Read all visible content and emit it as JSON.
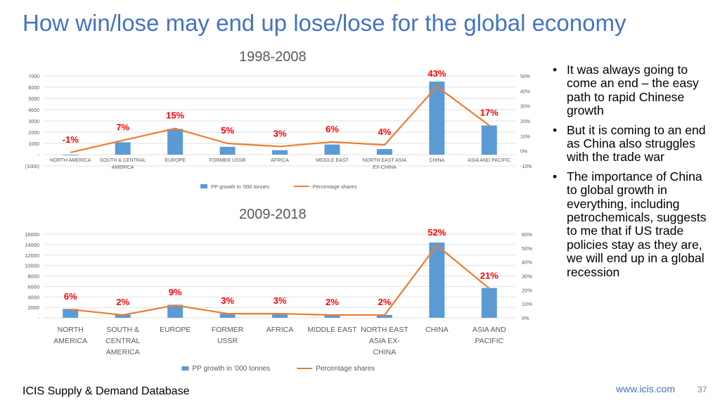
{
  "slide": {
    "title": "How win/lose may end up lose/lose for the global economy",
    "source": "ICIS Supply & Demand Database",
    "website": "www.icis.com",
    "page_number": "37"
  },
  "bullets": [
    {
      "text": "It was always going to come an end – the easy path to rapid Chinese growth"
    },
    {
      "text": "But it is coming to an end as China also struggles with the trade war"
    },
    {
      "text": "The importance of China to global growth in everything, including petrochemicals, suggests to me that if US trade policies stay as they are, we will end up in a global recession"
    }
  ],
  "colors": {
    "bar": "#5B9BD5",
    "line": "#ED7D31",
    "label": "#FF0000",
    "title": "#4472C4"
  },
  "chart_data": [
    {
      "type": "bar",
      "title": "1998-2008",
      "categories": [
        [
          "NORTH AMERICA"
        ],
        [
          "SOUTH & CENTRAL",
          "AMERICA"
        ],
        [
          "EUROPE"
        ],
        [
          "FORMER USSR"
        ],
        [
          "AFRICA"
        ],
        [
          "MIDDLE EAST"
        ],
        [
          "NORTH EAST ASIA",
          "EX-CHINA"
        ],
        [
          "CHINA"
        ],
        [
          "ASIA AND PACIFIC"
        ]
      ],
      "series": [
        {
          "name": "PP growth in '000 tonnes",
          "type": "bar",
          "axis": "left",
          "values": [
            -50,
            1100,
            2300,
            700,
            400,
            900,
            500,
            6500,
            2600
          ]
        },
        {
          "name": "Percentage shares",
          "type": "line",
          "axis": "right",
          "values": [
            -1,
            7,
            15,
            5,
            3,
            6,
            4,
            43,
            17
          ]
        }
      ],
      "data_labels": [
        "-1%",
        "7%",
        "15%",
        "5%",
        "3%",
        "6%",
        "4%",
        "43%",
        "17%"
      ],
      "y_left": {
        "min": -1000,
        "max": 7000,
        "ticks": [
          -1000,
          0,
          1000,
          2000,
          3000,
          4000,
          5000,
          6000,
          7000
        ],
        "tick_labels": [
          "(1000)",
          "-",
          "1000",
          "2000",
          "3000",
          "4000",
          "5000",
          "6000",
          "7000"
        ]
      },
      "y_right": {
        "min": -10,
        "max": 50,
        "ticks": [
          -10,
          0,
          10,
          20,
          30,
          40,
          50
        ],
        "tick_labels": [
          "-10%",
          "0%",
          "10%",
          "20%",
          "30%",
          "40%",
          "50%"
        ]
      },
      "grid": true,
      "legend": "bottom"
    },
    {
      "type": "bar",
      "title": "2009-2018",
      "categories": [
        [
          "NORTH",
          "AMERICA"
        ],
        [
          "SOUTH &",
          "CENTRAL",
          "AMERICA"
        ],
        [
          "EUROPE"
        ],
        [
          "FORMER",
          "USSR"
        ],
        [
          "AFRICA"
        ],
        [
          "MIDDLE EAST"
        ],
        [
          "NORTH EAST",
          "ASIA EX-",
          "CHINA"
        ],
        [
          "CHINA"
        ],
        [
          "ASIA AND",
          "PACIFIC"
        ]
      ],
      "series": [
        {
          "name": "PP growth in '000 tonnes",
          "type": "bar",
          "axis": "left",
          "values": [
            1700,
            600,
            2500,
            800,
            750,
            500,
            550,
            14400,
            5700
          ]
        },
        {
          "name": "Percentage shares",
          "type": "line",
          "axis": "right",
          "values": [
            6,
            2,
            9,
            3,
            3,
            2,
            2,
            52,
            21
          ]
        }
      ],
      "data_labels": [
        "6%",
        "2%",
        "9%",
        "3%",
        "3%",
        "2%",
        "2%",
        "52%",
        "21%"
      ],
      "y_left": {
        "min": 0,
        "max": 16000,
        "ticks": [
          0,
          2000,
          4000,
          6000,
          8000,
          10000,
          12000,
          14000,
          16000
        ],
        "tick_labels": [
          "-",
          "2000",
          "4000",
          "6000",
          "8000",
          "10000",
          "12000",
          "14000",
          "16000"
        ]
      },
      "y_right": {
        "min": 0,
        "max": 60,
        "ticks": [
          0,
          10,
          20,
          30,
          40,
          50,
          60
        ],
        "tick_labels": [
          "0%",
          "10%",
          "20%",
          "30%",
          "40%",
          "50%",
          "60%"
        ]
      },
      "grid": true,
      "legend": "bottom"
    }
  ]
}
